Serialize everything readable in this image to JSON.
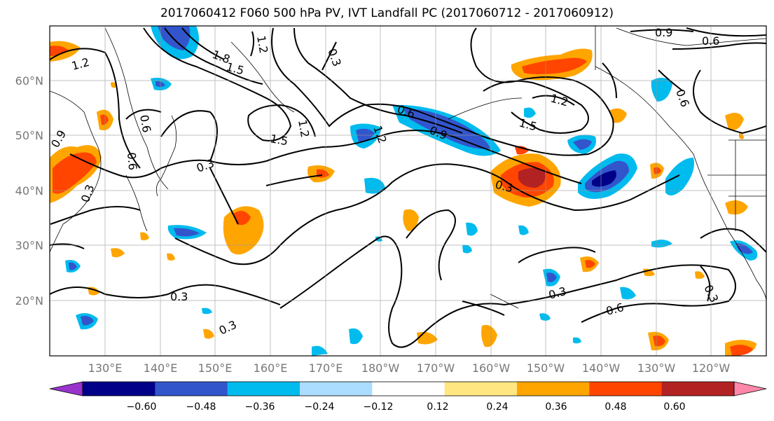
{
  "title": "2017060412 F060 500 hPa PV, IVT Landfall PC (2017060712 - 2017060912)",
  "lat_labels": [
    "60°N",
    "50°N",
    "40°N",
    "30°N",
    "20°N"
  ],
  "lon_labels": [
    "130°E",
    "140°E",
    "150°E",
    "160°E",
    "170°E",
    "180°W",
    "170°W",
    "160°W",
    "150°W",
    "140°W",
    "130°W",
    "120°W"
  ],
  "colorbar": {
    "ticks": [
      "−0.60",
      "−0.48",
      "−0.36",
      "−0.24",
      "−0.12",
      "0.12",
      "0.24",
      "0.36",
      "0.48",
      "0.60"
    ],
    "colors": [
      "#9933cc",
      "#000088",
      "#3355cc",
      "#00bbee",
      "#aaddff",
      "#ffffff",
      "#ffe680",
      "#ffa500",
      "#ff4500",
      "#b22222",
      "#ff88aa"
    ]
  },
  "contour_labels": [
    "1.2",
    "1.8",
    "1.5",
    "1.2",
    "0.3",
    "0.9",
    "0.6",
    "1.5",
    "1.2",
    "0.3",
    "0.6",
    "1.2",
    "0.9",
    "1.2",
    "1.5",
    "0.6",
    "0.9",
    "0.6",
    "0.6",
    "0.3",
    "0.3",
    "0.3",
    "0.3",
    "0.6",
    "0.3",
    "0.3"
  ]
}
